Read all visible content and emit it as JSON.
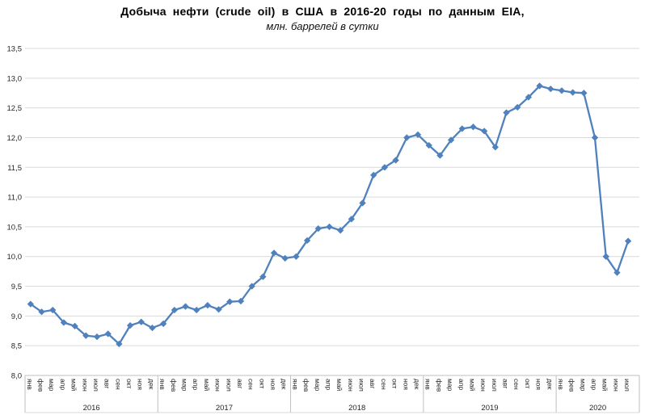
{
  "chart_data": {
    "type": "line",
    "title": "Добыча нефти (crude oil) в США в 2016-20 годы по данным EIA,",
    "subtitle": "млн. баррелей в сутки",
    "xlabel": "",
    "ylabel": "",
    "ylim": [
      8.0,
      13.5
    ],
    "ytick_step": 0.5,
    "ytick_labels": [
      "13,5",
      "13,0",
      "12,5",
      "12,0",
      "11,5",
      "11,0",
      "10,5",
      "10,0",
      "9,5",
      "9,0",
      "8,5",
      "8,0"
    ],
    "grid": true,
    "legend_position": "none",
    "marker": "diamond",
    "month_labels": [
      "янв",
      "фев",
      "мар",
      "апр",
      "май",
      "июн",
      "июл",
      "авг",
      "сен",
      "окт",
      "ноя",
      "дек"
    ],
    "groups": [
      {
        "year": "2016",
        "values": [
          9.2,
          9.07,
          9.1,
          8.89,
          8.83,
          8.67,
          8.65,
          8.7,
          8.53,
          8.84,
          8.9,
          8.8
        ]
      },
      {
        "year": "2017",
        "values": [
          8.87,
          9.1,
          9.16,
          9.1,
          9.18,
          9.11,
          9.24,
          9.25,
          9.5,
          9.66,
          10.06,
          9.97
        ]
      },
      {
        "year": "2018",
        "values": [
          10.0,
          10.27,
          10.47,
          10.5,
          10.44,
          10.63,
          10.9,
          11.37,
          11.5,
          11.62,
          12.0,
          12.05
        ]
      },
      {
        "year": "2019",
        "values": [
          11.87,
          11.7,
          11.96,
          12.15,
          12.18,
          12.11,
          11.84,
          12.42,
          12.51,
          12.68,
          12.87,
          12.82
        ]
      },
      {
        "year": "2020",
        "values": [
          12.79,
          12.76,
          12.75,
          12.0,
          10.0,
          9.73,
          10.26
        ]
      }
    ],
    "colors": {
      "line": "#4F81BD",
      "marker": "#4F81BD",
      "grid": "#D9D9D9",
      "axis": "#BFBFBF",
      "tick_text": "#262626",
      "title_text": "#000000"
    }
  }
}
